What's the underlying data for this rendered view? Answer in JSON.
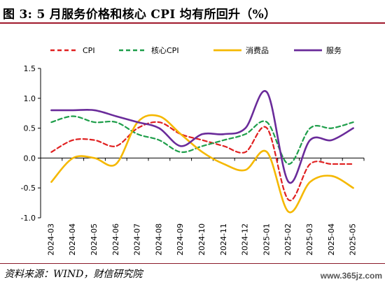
{
  "figure": {
    "title": "图 3:  5 月服务价格和核心 CPI 均有所回升（%）",
    "source": "资料来源：WIND，财信研究院",
    "watermark": "www.365jz.com"
  },
  "chart_data": {
    "type": "line",
    "title": "",
    "xlabel": "",
    "ylabel": "",
    "x": [
      "2024-03",
      "2024-04",
      "2024-05",
      "2024-06",
      "2024-07",
      "2024-08",
      "2024-09",
      "2024-10",
      "2024-11",
      "2024-12",
      "2025-01",
      "2025-02",
      "2025-03",
      "2025-04",
      "2025-05"
    ],
    "ylim": [
      -1.0,
      1.5
    ],
    "yticks": [
      -1.0,
      -0.5,
      0.0,
      0.5,
      1.0,
      1.5
    ],
    "ytick_labels": [
      "-1.0",
      "-0.5",
      "0.0",
      "0.5",
      "1.0",
      "1.5"
    ],
    "grid": false,
    "legend_position": "top",
    "smooth": true,
    "series": [
      {
        "name": "CPI",
        "color": "#e02020",
        "dash": "dashed",
        "values": [
          0.1,
          0.3,
          0.3,
          0.2,
          0.5,
          0.6,
          0.4,
          0.3,
          0.2,
          0.1,
          0.5,
          -0.7,
          -0.1,
          -0.1,
          -0.1
        ]
      },
      {
        "name": "核心CPI",
        "color": "#1e9e4a",
        "dash": "dashed",
        "values": [
          0.6,
          0.7,
          0.6,
          0.6,
          0.4,
          0.3,
          0.1,
          0.2,
          0.3,
          0.4,
          0.6,
          -0.1,
          0.5,
          0.5,
          0.6
        ]
      },
      {
        "name": "消费品",
        "color": "#f5b800",
        "dash": "solid",
        "values": [
          -0.4,
          0.0,
          0.0,
          -0.1,
          0.6,
          0.7,
          0.4,
          0.1,
          -0.1,
          -0.2,
          0.1,
          -0.9,
          -0.4,
          -0.3,
          -0.5
        ]
      },
      {
        "name": "服务",
        "color": "#6a2b9a",
        "dash": "solid",
        "values": [
          0.8,
          0.8,
          0.8,
          0.7,
          0.6,
          0.5,
          0.2,
          0.4,
          0.4,
          0.5,
          1.1,
          -0.4,
          0.3,
          0.3,
          0.5
        ]
      }
    ]
  }
}
